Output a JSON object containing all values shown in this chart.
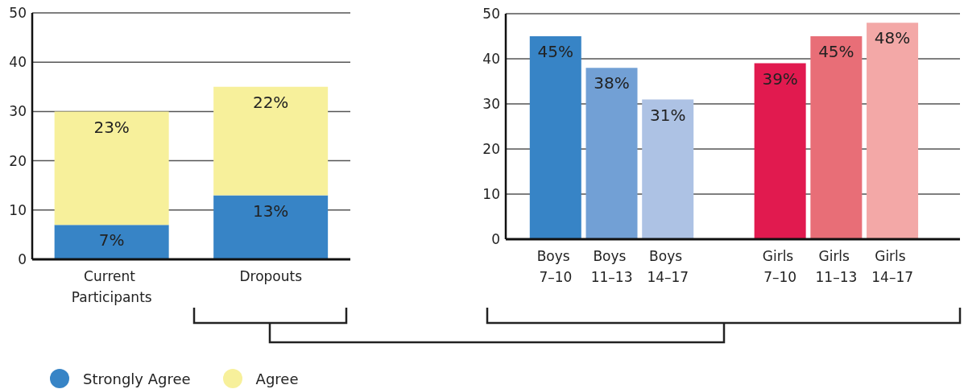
{
  "chart_data": [
    {
      "type": "bar",
      "stacked": true,
      "categories": [
        "Current Participants",
        "Dropouts"
      ],
      "series": [
        {
          "name": "Strongly Agree",
          "color": "#3784c6",
          "values": [
            7,
            13
          ],
          "value_labels": [
            "7%",
            "13%"
          ]
        },
        {
          "name": "Agree",
          "color": "#f7f09b",
          "values": [
            23,
            22
          ],
          "value_labels": [
            "23%",
            "22%"
          ]
        }
      ],
      "ylim": [
        0,
        50
      ],
      "yticks": [
        0,
        10,
        20,
        30,
        40,
        50
      ],
      "grid": "y",
      "legend": "bottom left"
    },
    {
      "type": "bar",
      "categories": [
        "Boys 7–10",
        "Boys 11–13",
        "Boys 14–17",
        null,
        "Girls 7–10",
        "Girls 11–13",
        "Girls 14–17"
      ],
      "values": [
        45,
        38,
        31,
        null,
        39,
        45,
        48
      ],
      "colors": [
        "#3784c6",
        "#72a0d5",
        "#adc2e4",
        null,
        "#e11a4f",
        "#e86e77",
        "#f3a8a7"
      ],
      "value_labels": [
        "45%",
        "38%",
        "31%",
        null,
        "39%",
        "45%",
        "48%"
      ],
      "ylim": [
        0,
        50
      ],
      "yticks": [
        0,
        10,
        20,
        30,
        40,
        50
      ],
      "grid": "y"
    }
  ]
}
